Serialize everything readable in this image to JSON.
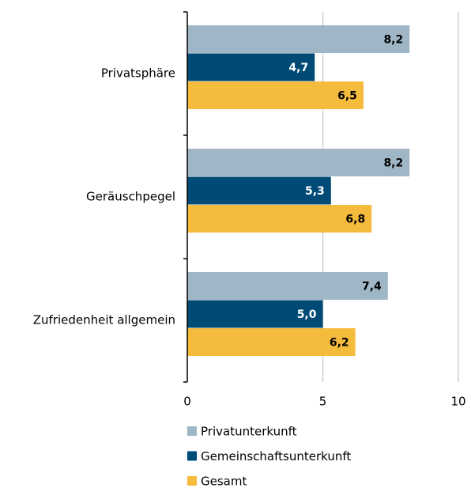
{
  "chart_data": {
    "type": "bar",
    "orientation": "horizontal",
    "categories": [
      "Privatsphäre",
      "Geräuschpegel",
      "Zufriedenheit allgemein"
    ],
    "series": [
      {
        "name": "Privatunterkunft",
        "color": "#9fb6c6",
        "label_color": "#000000",
        "values": [
          8.2,
          8.2,
          7.4
        ],
        "value_labels": [
          "8,2",
          "8,2",
          "7,4"
        ]
      },
      {
        "name": "Gemeinschaftsunterkunft",
        "color": "#004b76",
        "label_color": "#ffffff",
        "values": [
          4.7,
          5.3,
          5.0
        ],
        "value_labels": [
          "4,7",
          "5,3",
          "5,0"
        ]
      },
      {
        "name": "Gesamt",
        "color": "#f5bb3d",
        "label_color": "#000000",
        "values": [
          6.5,
          6.8,
          6.2
        ],
        "value_labels": [
          "6,5",
          "6,8",
          "6,2"
        ]
      }
    ],
    "xlim": [
      0,
      10
    ],
    "xticks": [
      0,
      5,
      10
    ],
    "grid": true
  }
}
